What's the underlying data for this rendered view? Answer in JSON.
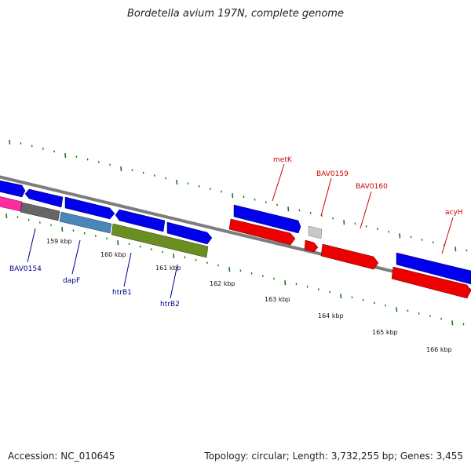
{
  "title": "Bordetella avium 197N, complete genome",
  "footer": {
    "accession": "Accession: NC_010645",
    "topology": "Topology: circular; Length: 3,732,255 bp; Genes: 3,455"
  },
  "colors": {
    "backbone": "#8a8a8a",
    "tick": "#1a7a1a",
    "forward_gene": "#0000ee",
    "reverse_gene": "#ee0000",
    "label_forward": "#00008b",
    "label_reverse": "#cc0000",
    "grey_gene": "#c8c8c8",
    "pink_gene": "#ff2aa0",
    "dark_grey_gene": "#666666",
    "steel_gene": "#4a86b8",
    "olive_gene": "#6b8e23"
  },
  "tick_labels": [
    "159 kbp",
    "160 kbp",
    "161 kbp",
    "162 kbp",
    "163 kbp",
    "164 kbp",
    "165 kbp",
    "166 kbp"
  ],
  "top_labels": [
    "metK",
    "BAV0159",
    "BAV0160",
    "acyH"
  ],
  "bottom_labels": [
    "BAV0154",
    "dapF",
    "htrB1",
    "htrB2"
  ]
}
